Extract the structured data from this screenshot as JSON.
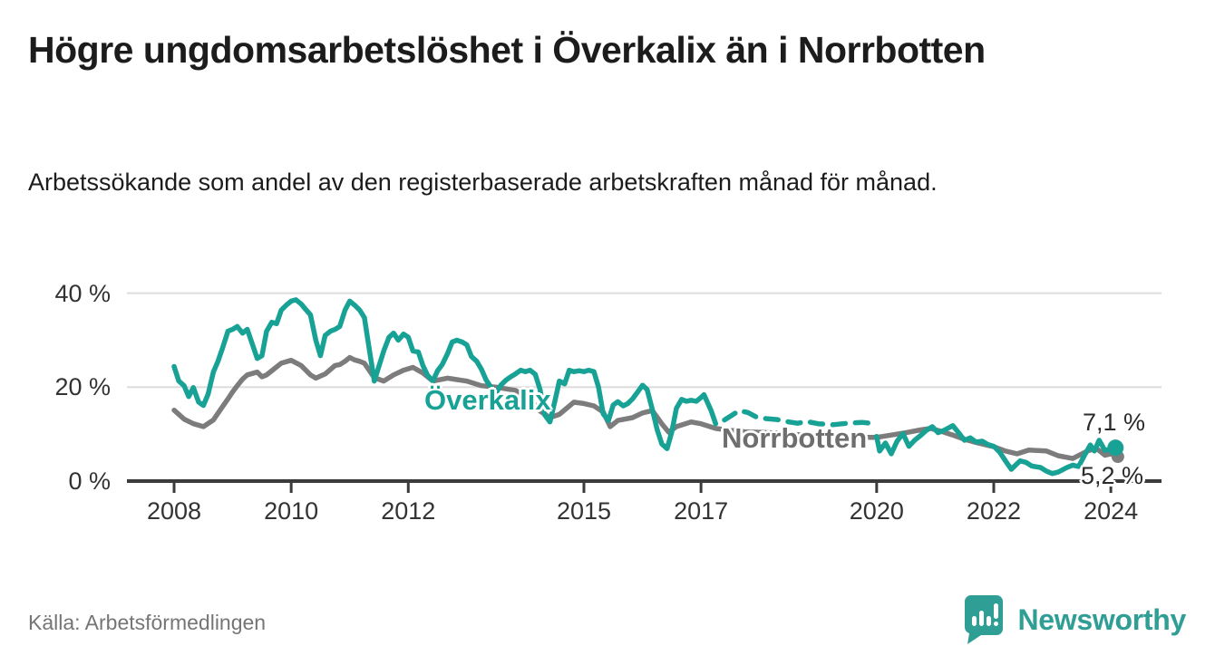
{
  "title": "Högre ungdomsarbetslöshet i Överkalix än i Norrbotten",
  "subtitle": "Arbetssökande som andel av den registerbaserade arbetskraften månad för månad.",
  "source": "Källa: Arbetsförmedlingen",
  "branding": {
    "name": "Newsworthy",
    "logo_icon": "speech-bubble-bar-chart",
    "color": "#2f9e94"
  },
  "colors": {
    "overkalix_line": "#17a295",
    "norrbotten_line": "#7c7c7c",
    "gridline": "#dcdcdc",
    "axis": "#3b3b3b",
    "text": "#1c1c1c",
    "muted_text": "#757575"
  },
  "chart_data": {
    "type": "line",
    "title": "Högre ungdomsarbetslöshet i Överkalix än i Norrbotten",
    "xlabel": "",
    "ylabel": "",
    "xlim": [
      2007.2,
      2024.9
    ],
    "ylim": [
      0,
      42
    ],
    "grid": "horizontal",
    "legend_position": "inline-labels",
    "x_ticks": [
      2008,
      2010,
      2012,
      2015,
      2017,
      2020,
      2022,
      2024
    ],
    "y_ticks": [
      {
        "value": 0,
        "label": "0 %"
      },
      {
        "value": 20,
        "label": "20 %"
      },
      {
        "value": 40,
        "label": "40 %"
      }
    ],
    "series": [
      {
        "name": "Överkalix",
        "color": "#17a295",
        "end_label": "7,1 %",
        "end_value": 7.1,
        "dashed_year_range": [
          2017.3,
          2019.96
        ],
        "points": [
          [
            2008.0,
            24.4
          ],
          [
            2008.08,
            21.3
          ],
          [
            2008.17,
            20.3
          ],
          [
            2008.25,
            18.0
          ],
          [
            2008.33,
            19.9
          ],
          [
            2008.42,
            16.8
          ],
          [
            2008.5,
            16.1
          ],
          [
            2008.58,
            18.5
          ],
          [
            2008.67,
            23.2
          ],
          [
            2008.75,
            25.5
          ],
          [
            2008.83,
            28.4
          ],
          [
            2008.92,
            31.9
          ],
          [
            2009.0,
            32.3
          ],
          [
            2009.08,
            32.9
          ],
          [
            2009.17,
            31.5
          ],
          [
            2009.25,
            32.3
          ],
          [
            2009.33,
            29.4
          ],
          [
            2009.42,
            26.1
          ],
          [
            2009.5,
            26.7
          ],
          [
            2009.58,
            31.9
          ],
          [
            2009.67,
            33.8
          ],
          [
            2009.75,
            33.5
          ],
          [
            2009.83,
            36.4
          ],
          [
            2009.92,
            37.5
          ],
          [
            2010.0,
            38.3
          ],
          [
            2010.08,
            38.6
          ],
          [
            2010.17,
            37.7
          ],
          [
            2010.25,
            36.5
          ],
          [
            2010.33,
            35.4
          ],
          [
            2010.42,
            30.0
          ],
          [
            2010.5,
            26.7
          ],
          [
            2010.58,
            31.0
          ],
          [
            2010.67,
            31.9
          ],
          [
            2010.75,
            32.3
          ],
          [
            2010.83,
            32.9
          ],
          [
            2010.92,
            36.4
          ],
          [
            2011.0,
            38.3
          ],
          [
            2011.08,
            37.5
          ],
          [
            2011.17,
            36.4
          ],
          [
            2011.25,
            34.8
          ],
          [
            2011.33,
            28.4
          ],
          [
            2011.42,
            21.3
          ],
          [
            2011.5,
            24.5
          ],
          [
            2011.58,
            27.7
          ],
          [
            2011.67,
            30.6
          ],
          [
            2011.75,
            31.5
          ],
          [
            2011.83,
            30.0
          ],
          [
            2011.92,
            31.3
          ],
          [
            2012.0,
            30.6
          ],
          [
            2012.08,
            27.7
          ],
          [
            2012.17,
            27.5
          ],
          [
            2012.25,
            24.6
          ],
          [
            2012.33,
            22.5
          ],
          [
            2012.42,
            21.3
          ],
          [
            2012.5,
            23.5
          ],
          [
            2012.58,
            24.8
          ],
          [
            2012.67,
            27.1
          ],
          [
            2012.75,
            29.6
          ],
          [
            2012.83,
            30.0
          ],
          [
            2012.92,
            29.6
          ],
          [
            2013.0,
            29.0
          ],
          [
            2013.08,
            26.5
          ],
          [
            2013.17,
            25.5
          ],
          [
            2013.25,
            23.8
          ],
          [
            2013.33,
            21.5
          ],
          [
            2013.42,
            19.8
          ],
          [
            2013.5,
            18.8
          ],
          [
            2013.58,
            20.4
          ],
          [
            2013.67,
            21.5
          ],
          [
            2013.75,
            22.2
          ],
          [
            2013.83,
            22.8
          ],
          [
            2013.92,
            23.6
          ],
          [
            2014.0,
            23.3
          ],
          [
            2014.08,
            23.6
          ],
          [
            2014.17,
            22.7
          ],
          [
            2014.25,
            19.5
          ],
          [
            2014.33,
            14.1
          ],
          [
            2014.42,
            12.6
          ],
          [
            2014.5,
            16.8
          ],
          [
            2014.58,
            21.3
          ],
          [
            2014.67,
            20.7
          ],
          [
            2014.75,
            23.6
          ],
          [
            2014.83,
            23.3
          ],
          [
            2014.92,
            23.5
          ],
          [
            2015.0,
            23.3
          ],
          [
            2015.08,
            23.6
          ],
          [
            2015.17,
            23.3
          ],
          [
            2015.25,
            20.0
          ],
          [
            2015.33,
            14.3
          ],
          [
            2015.42,
            12.9
          ],
          [
            2015.5,
            16.2
          ],
          [
            2015.58,
            16.9
          ],
          [
            2015.67,
            16.0
          ],
          [
            2015.75,
            16.5
          ],
          [
            2015.83,
            17.5
          ],
          [
            2015.92,
            19.0
          ],
          [
            2016.0,
            20.4
          ],
          [
            2016.08,
            19.5
          ],
          [
            2016.17,
            15.2
          ],
          [
            2016.25,
            11.0
          ],
          [
            2016.33,
            7.9
          ],
          [
            2016.42,
            6.9
          ],
          [
            2016.5,
            10.4
          ],
          [
            2016.58,
            15.5
          ],
          [
            2016.67,
            17.4
          ],
          [
            2016.75,
            17.0
          ],
          [
            2016.83,
            17.2
          ],
          [
            2016.92,
            17.0
          ],
          [
            2017.0,
            17.8
          ],
          [
            2017.05,
            18.4
          ],
          [
            2017.17,
            15.1
          ],
          [
            2017.25,
            12.2
          ],
          [
            2017.4,
            13.0
          ],
          [
            2017.55,
            14.2
          ],
          [
            2017.65,
            15.0
          ],
          [
            2017.8,
            14.6
          ],
          [
            2017.95,
            13.6
          ],
          [
            2018.1,
            13.3
          ],
          [
            2018.3,
            13.1
          ],
          [
            2018.5,
            12.6
          ],
          [
            2018.65,
            12.3
          ],
          [
            2018.8,
            12.7
          ],
          [
            2019.0,
            12.2
          ],
          [
            2019.25,
            12.0
          ],
          [
            2019.5,
            12.3
          ],
          [
            2019.75,
            12.5
          ],
          [
            2019.9,
            12.3
          ],
          [
            2020.0,
            9.5
          ],
          [
            2020.05,
            6.4
          ],
          [
            2020.15,
            8.1
          ],
          [
            2020.25,
            5.8
          ],
          [
            2020.35,
            8.5
          ],
          [
            2020.45,
            10.1
          ],
          [
            2020.55,
            7.4
          ],
          [
            2020.65,
            8.7
          ],
          [
            2020.75,
            9.7
          ],
          [
            2020.85,
            10.8
          ],
          [
            2020.95,
            11.6
          ],
          [
            2021.05,
            10.3
          ],
          [
            2021.15,
            10.8
          ],
          [
            2021.3,
            11.8
          ],
          [
            2021.4,
            10.3
          ],
          [
            2021.5,
            8.7
          ],
          [
            2021.6,
            9.2
          ],
          [
            2021.7,
            8.3
          ],
          [
            2021.8,
            8.5
          ],
          [
            2021.9,
            7.8
          ],
          [
            2022.0,
            7.4
          ],
          [
            2022.1,
            6.2
          ],
          [
            2022.2,
            4.3
          ],
          [
            2022.3,
            2.5
          ],
          [
            2022.45,
            4.3
          ],
          [
            2022.55,
            4.0
          ],
          [
            2022.65,
            3.2
          ],
          [
            2022.8,
            2.9
          ],
          [
            2022.9,
            2.1
          ],
          [
            2023.0,
            1.6
          ],
          [
            2023.1,
            1.9
          ],
          [
            2023.25,
            2.9
          ],
          [
            2023.35,
            3.4
          ],
          [
            2023.45,
            3.1
          ],
          [
            2023.55,
            5.5
          ],
          [
            2023.65,
            7.7
          ],
          [
            2023.72,
            6.4
          ],
          [
            2023.8,
            8.7
          ],
          [
            2023.9,
            6.5
          ],
          [
            2024.0,
            6.9
          ],
          [
            2024.08,
            7.1
          ]
        ]
      },
      {
        "name": "Norrbotten",
        "color": "#7c7c7c",
        "end_label": "5,2 %",
        "end_value": 5.2,
        "points": [
          [
            2008.0,
            15.1
          ],
          [
            2008.17,
            13.2
          ],
          [
            2008.33,
            12.2
          ],
          [
            2008.5,
            11.6
          ],
          [
            2008.67,
            13.0
          ],
          [
            2008.83,
            15.9
          ],
          [
            2008.92,
            17.5
          ],
          [
            2009.0,
            19.0
          ],
          [
            2009.08,
            20.3
          ],
          [
            2009.17,
            21.7
          ],
          [
            2009.25,
            22.6
          ],
          [
            2009.42,
            23.2
          ],
          [
            2009.5,
            22.2
          ],
          [
            2009.58,
            22.6
          ],
          [
            2009.67,
            23.5
          ],
          [
            2009.83,
            25.1
          ],
          [
            2010.0,
            25.7
          ],
          [
            2010.17,
            24.6
          ],
          [
            2010.33,
            22.6
          ],
          [
            2010.42,
            21.9
          ],
          [
            2010.58,
            22.8
          ],
          [
            2010.75,
            24.6
          ],
          [
            2010.83,
            24.8
          ],
          [
            2010.92,
            25.5
          ],
          [
            2011.0,
            26.3
          ],
          [
            2011.08,
            25.8
          ],
          [
            2011.17,
            25.5
          ],
          [
            2011.25,
            25.1
          ],
          [
            2011.42,
            22.0
          ],
          [
            2011.58,
            21.3
          ],
          [
            2011.75,
            22.6
          ],
          [
            2011.92,
            23.6
          ],
          [
            2012.08,
            24.2
          ],
          [
            2012.25,
            23.0
          ],
          [
            2012.42,
            21.3
          ],
          [
            2012.67,
            21.9
          ],
          [
            2012.83,
            21.6
          ],
          [
            2013.0,
            21.3
          ],
          [
            2013.25,
            20.3
          ],
          [
            2013.5,
            20.0
          ],
          [
            2013.83,
            19.3
          ],
          [
            2014.08,
            17.4
          ],
          [
            2014.25,
            14.9
          ],
          [
            2014.42,
            13.5
          ],
          [
            2014.58,
            14.2
          ],
          [
            2014.83,
            16.8
          ],
          [
            2015.0,
            16.5
          ],
          [
            2015.17,
            16.0
          ],
          [
            2015.33,
            14.7
          ],
          [
            2015.45,
            11.6
          ],
          [
            2015.58,
            12.9
          ],
          [
            2015.83,
            13.5
          ],
          [
            2016.0,
            14.5
          ],
          [
            2016.17,
            15.0
          ],
          [
            2016.33,
            12.2
          ],
          [
            2016.45,
            10.4
          ],
          [
            2016.58,
            11.6
          ],
          [
            2016.83,
            12.6
          ],
          [
            2017.0,
            12.2
          ],
          [
            2017.25,
            11.2
          ],
          [
            2017.5,
            10.8
          ],
          [
            2017.75,
            10.5
          ],
          [
            2018.0,
            10.4
          ],
          [
            2018.33,
            10.2
          ],
          [
            2018.67,
            9.9
          ],
          [
            2019.0,
            9.6
          ],
          [
            2019.33,
            9.4
          ],
          [
            2019.67,
            9.3
          ],
          [
            2020.0,
            9.3
          ],
          [
            2020.25,
            9.8
          ],
          [
            2020.5,
            10.3
          ],
          [
            2020.75,
            10.9
          ],
          [
            2020.92,
            11.2
          ],
          [
            2021.1,
            10.6
          ],
          [
            2021.3,
            9.8
          ],
          [
            2021.5,
            8.9
          ],
          [
            2021.7,
            8.2
          ],
          [
            2021.9,
            7.6
          ],
          [
            2022.0,
            7.3
          ],
          [
            2022.2,
            6.4
          ],
          [
            2022.4,
            5.8
          ],
          [
            2022.6,
            6.6
          ],
          [
            2022.75,
            6.5
          ],
          [
            2022.9,
            6.4
          ],
          [
            2023.1,
            5.4
          ],
          [
            2023.35,
            4.8
          ],
          [
            2023.6,
            6.4
          ],
          [
            2023.75,
            7.0
          ],
          [
            2023.9,
            5.5
          ],
          [
            2024.0,
            5.8
          ],
          [
            2024.12,
            5.2
          ]
        ]
      }
    ]
  }
}
